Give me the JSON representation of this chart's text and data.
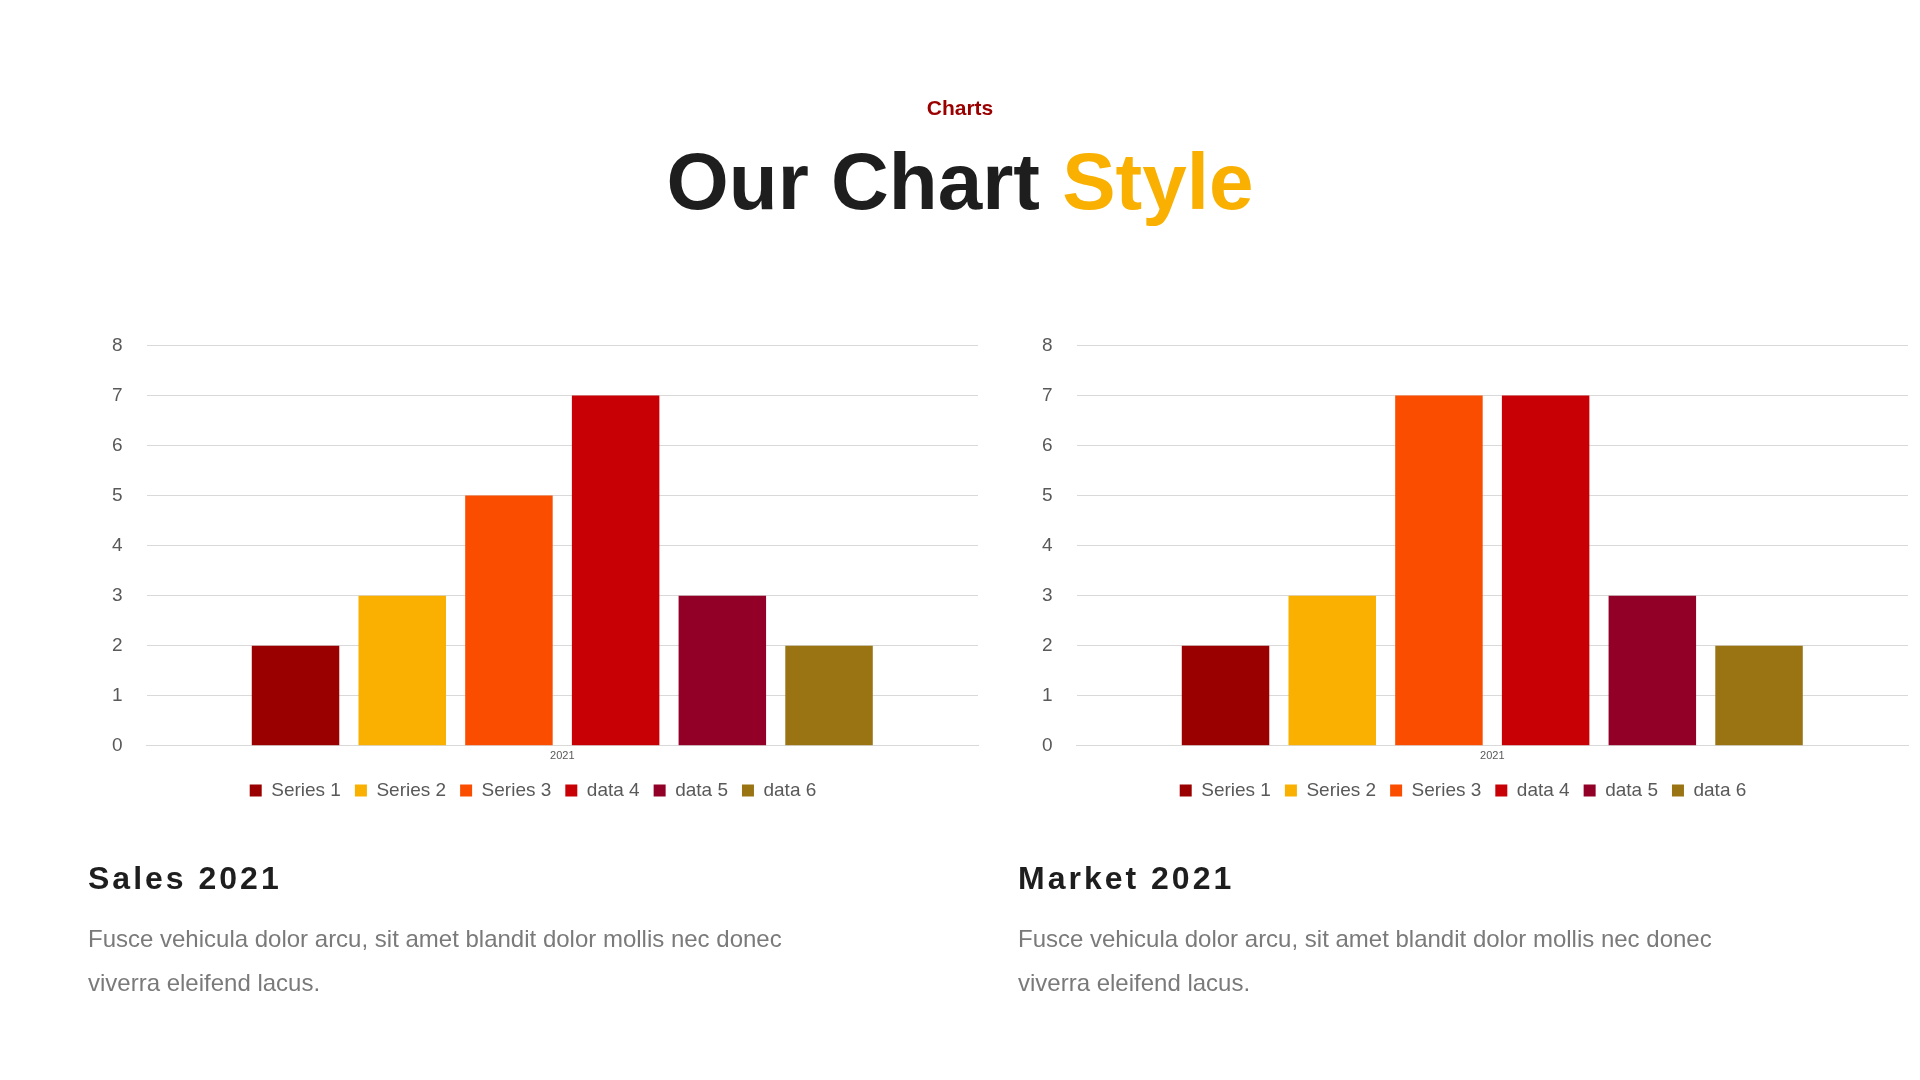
{
  "chart_data": [
    {
      "type": "bar",
      "title": "Sales 2021",
      "subtitle": "Fusce vehicula dolor arcu, sit amet blandit dolor mollis nec donec viverra eleifend lacus.",
      "annotations": [
        "Charts",
        "Our Chart Style"
      ],
      "categories": [
        "2021"
      ],
      "series": [
        {
          "name": "Series 1",
          "color": "#9b0000",
          "values": [
            2
          ]
        },
        {
          "name": "Series 2",
          "color": "#f9b000",
          "values": [
            3
          ]
        },
        {
          "name": "Series 3",
          "color": "#fa4d00",
          "values": [
            5
          ]
        },
        {
          "name": "data 4",
          "color": "#c80006",
          "values": [
            7
          ]
        },
        {
          "name": "data 5",
          "color": "#920027",
          "values": [
            3
          ]
        },
        {
          "name": "data 6",
          "color": "#9a7412",
          "values": [
            2
          ]
        }
      ],
      "ylim": [
        0,
        8
      ],
      "yticks": [
        0,
        1,
        2,
        3,
        4,
        5,
        6,
        7,
        8
      ],
      "grid": "y",
      "legend": "bottom"
    },
    {
      "type": "bar",
      "title": "Market 2021",
      "subtitle": "Fusce vehicula dolor arcu, sit amet blandit dolor mollis nec donec viverra eleifend lacus.",
      "categories": [
        "2021"
      ],
      "series": [
        {
          "name": "Series 1",
          "color": "#9b0000",
          "values": [
            2
          ]
        },
        {
          "name": "Series 2",
          "color": "#f9b000",
          "values": [
            3
          ]
        },
        {
          "name": "Series 3",
          "color": "#fa4d00",
          "values": [
            7
          ]
        },
        {
          "name": "data 4",
          "color": "#c80006",
          "values": [
            7
          ]
        },
        {
          "name": "data 5",
          "color": "#920027",
          "values": [
            3
          ]
        },
        {
          "name": "data 6",
          "color": "#9a7412",
          "values": [
            2
          ]
        }
      ],
      "ylim": [
        0,
        8
      ],
      "yticks": [
        0,
        1,
        2,
        3,
        4,
        5,
        6,
        7,
        8
      ],
      "grid": "y",
      "legend": "bottom"
    }
  ]
}
